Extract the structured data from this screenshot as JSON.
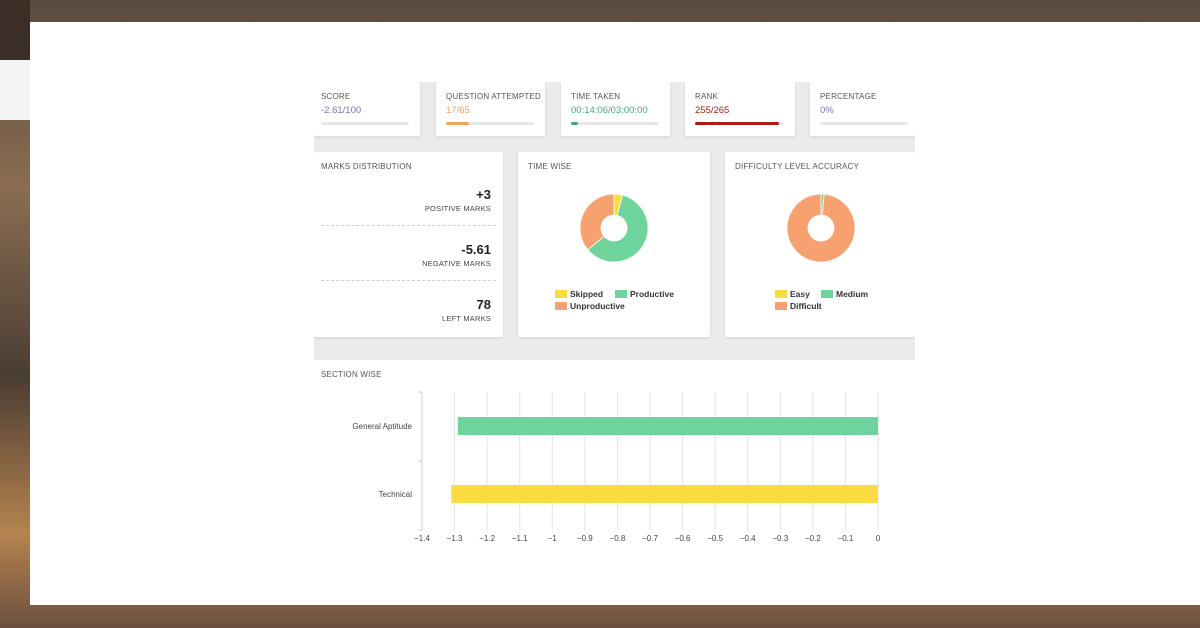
{
  "colors": {
    "score": "#7b6fc7",
    "attempted": "#f4a35a",
    "time": "#3fa883",
    "rank": "#b11a12",
    "percentage": "#7b6fc7",
    "skipped": "#fadc40",
    "productive": "#6fd49b",
    "unproductive": "#f7a070",
    "easy": "#fadc40",
    "medium": "#6fd49b",
    "difficult": "#f7a070"
  },
  "stats": [
    {
      "title": "SCORE",
      "value": "-2.61/100",
      "progress": 0.0
    },
    {
      "title": "QUESTION ATTEMPTED",
      "value": "17/65",
      "progress": 0.26
    },
    {
      "title": "TIME TAKEN",
      "value": "00:14:06/03:00:00",
      "progress": 0.08
    },
    {
      "title": "RANK",
      "value": "255/265",
      "progress": 0.96
    },
    {
      "title": "PERCENTAGE",
      "value": "0%",
      "progress": 0.0
    }
  ],
  "marks": {
    "title": "MARKS DISTRIBUTION",
    "positive_value": "+3",
    "positive_label": "POSITIVE MARKS",
    "negative_value": "-5.61",
    "negative_label": "NEGATIVE MARKS",
    "left_value": "78",
    "left_label": "LEFT MARKS"
  },
  "time_wise": {
    "title": "TIME WISE",
    "legend": {
      "skipped": "Skipped",
      "productive": "Productive",
      "unproductive": "Unproductive"
    },
    "slices": {
      "skipped": 0.04,
      "productive": 0.6,
      "unproductive": 0.36
    }
  },
  "difficulty": {
    "title": "DIFFICULTY LEVEL ACCURACY",
    "legend": {
      "easy": "Easy",
      "medium": "Medium",
      "difficult": "Difficult"
    },
    "slices": {
      "easy": 0.0,
      "medium": 0.015,
      "difficult": 0.985
    }
  },
  "section_wise": {
    "title": "SECTION WISE"
  },
  "chart_data": {
    "type": "bar",
    "orientation": "horizontal",
    "categories": [
      "General Aptitude",
      "Technical"
    ],
    "series": [
      {
        "values": [
          -1.29,
          -1.31
        ],
        "colors": [
          "#6fd49b",
          "#fadc40"
        ]
      }
    ],
    "xlim": [
      -1.4,
      0
    ],
    "xticks": [
      "−1.4",
      "−1.3",
      "−1.2",
      "−1.1",
      "−1",
      "−0.9",
      "−0.8",
      "−0.7",
      "−0.6",
      "−0.5",
      "−0.4",
      "−0.3",
      "−0.2",
      "−0.1",
      "0"
    ],
    "xtick_values": [
      -1.4,
      -1.3,
      -1.2,
      -1.1,
      -1.0,
      -0.9,
      -0.8,
      -0.7,
      -0.6,
      -0.5,
      -0.4,
      -0.3,
      -0.2,
      -0.1,
      0
    ],
    "grid": true
  }
}
